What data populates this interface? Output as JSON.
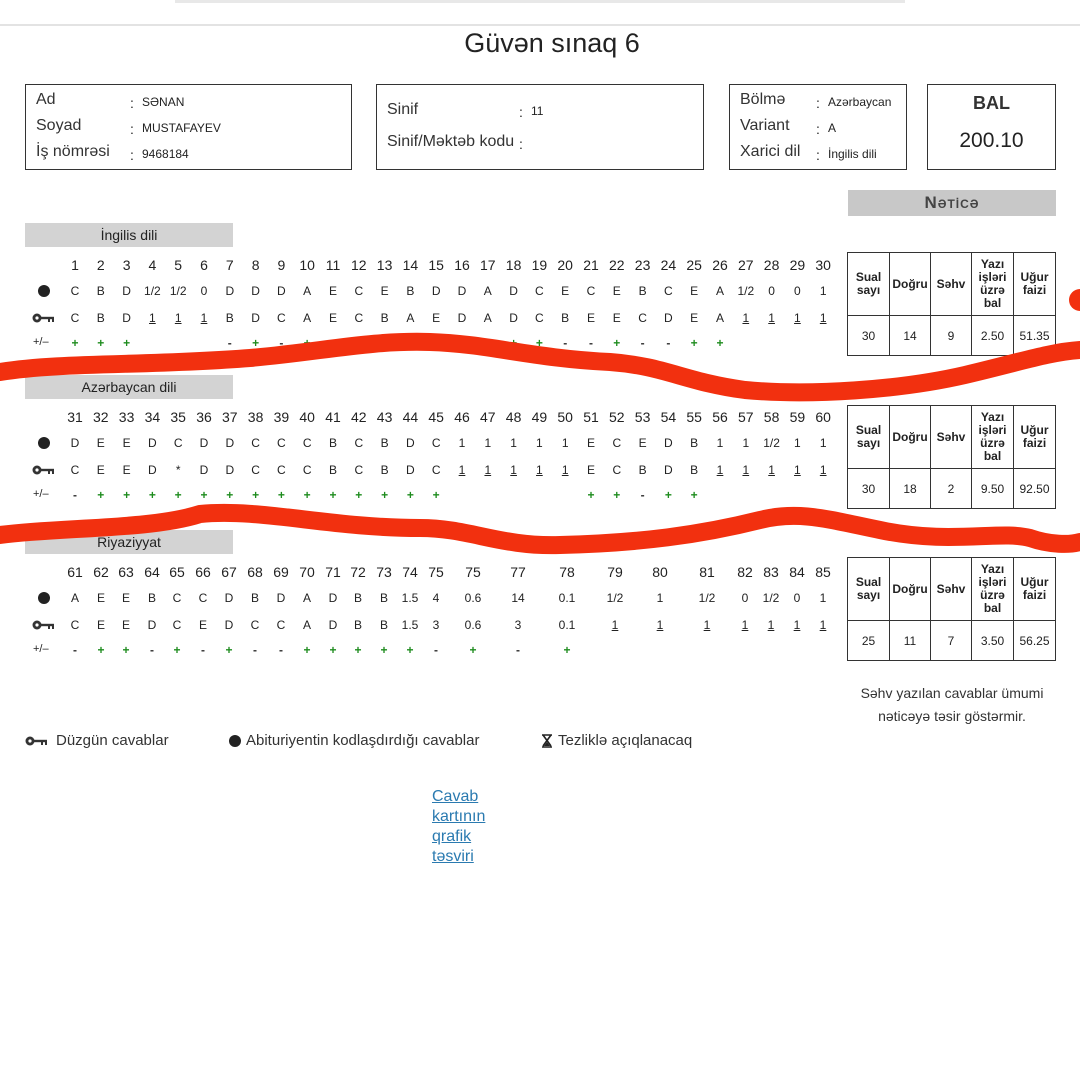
{
  "title": "Güvən sınaq 6",
  "student": [
    {
      "label": "Ad",
      "value": "SƏNAN"
    },
    {
      "label": "Soyad",
      "value": "MUSTAFAYEV"
    },
    {
      "label": "İş nömrəsi",
      "value": "9468184"
    }
  ],
  "school": [
    {
      "label": "Sinif",
      "value": "11"
    },
    {
      "label": "Sinif/Məktəb kodu",
      "value": null
    }
  ],
  "variant": [
    {
      "label": "Bölmə",
      "value": "Azərbaycan"
    },
    {
      "label": "Variant",
      "value": "A"
    },
    {
      "label": "Xarici dil",
      "value": "İngilis dili"
    }
  ],
  "score": {
    "label": "BAL",
    "value": "200.10"
  },
  "result_title": "Nəticə",
  "result_headers": [
    "Sual sayı",
    "Doğru",
    "Səhv",
    "Yazı işləri üzrə bal",
    "Uğur faizi"
  ],
  "marks_label": "+/–",
  "sections": [
    {
      "name": "İngilis dili",
      "questions": [
        "1",
        "2",
        "3",
        "4",
        "5",
        "6",
        "7",
        "8",
        "9",
        "10",
        "11",
        "12",
        "13",
        "14",
        "15",
        "16",
        "17",
        "18",
        "19",
        "20",
        "21",
        "22",
        "23",
        "24",
        "25",
        "26",
        "27",
        "28",
        "29",
        "30"
      ],
      "student": [
        "C",
        "B",
        "D",
        "1/2",
        "1/2",
        "0",
        "D",
        "D",
        "D",
        "A",
        "E",
        "C",
        "E",
        "B",
        "D",
        "D",
        "A",
        "D",
        "C",
        "E",
        "C",
        "E",
        "B",
        "C",
        "E",
        "A",
        "1/2",
        "0",
        "0",
        "1"
      ],
      "key": [
        "C",
        "B",
        "D",
        "1",
        "1",
        "1",
        "B",
        "D",
        "C",
        "A",
        "E",
        "C",
        "B",
        "A",
        "E",
        "D",
        "A",
        "D",
        "C",
        "B",
        "E",
        "E",
        "C",
        "D",
        "E",
        "A",
        "1",
        "1",
        "1",
        "1"
      ],
      "marks": [
        "+",
        "+",
        "+",
        null,
        null,
        null,
        "-",
        "+",
        "-",
        "+",
        "+",
        "+",
        "-",
        "-",
        "-",
        "+",
        "+",
        "+",
        "+",
        "-",
        "-",
        "+",
        "-",
        "-",
        "+",
        "+",
        null,
        null,
        null,
        null
      ],
      "result": [
        "30",
        "14",
        "9",
        "2.50",
        "51.35"
      ]
    },
    {
      "name": "Azərbaycan dili",
      "questions": [
        "31",
        "32",
        "33",
        "34",
        "35",
        "36",
        "37",
        "38",
        "39",
        "40",
        "41",
        "42",
        "43",
        "44",
        "45",
        "46",
        "47",
        "48",
        "49",
        "50",
        "51",
        "52",
        "53",
        "54",
        "55",
        "56",
        "57",
        "58",
        "59",
        "60"
      ],
      "student": [
        "D",
        "E",
        "E",
        "D",
        "C",
        "D",
        "D",
        "C",
        "C",
        "C",
        "B",
        "C",
        "B",
        "D",
        "C",
        "1",
        "1",
        "1",
        "1",
        "1",
        "E",
        "C",
        "E",
        "D",
        "B",
        "1",
        "1",
        "1/2",
        "1",
        "1"
      ],
      "key": [
        "C",
        "E",
        "E",
        "D",
        "*",
        "D",
        "D",
        "C",
        "C",
        "C",
        "B",
        "C",
        "B",
        "D",
        "C",
        "1",
        "1",
        "1",
        "1",
        "1",
        "E",
        "C",
        "B",
        "D",
        "B",
        "1",
        "1",
        "1",
        "1",
        "1"
      ],
      "marks": [
        "-",
        "+",
        "+",
        "+",
        "+",
        "+",
        "+",
        "+",
        "+",
        "+",
        "+",
        "+",
        "+",
        "+",
        "+",
        null,
        null,
        null,
        null,
        null,
        "+",
        "+",
        "-",
        "+",
        "+",
        null,
        null,
        null,
        null,
        null
      ],
      "result": [
        "30",
        "18",
        "2",
        "9.50",
        "92.50"
      ]
    },
    {
      "name": "Riyaziyyat",
      "questions": [
        "61",
        "62",
        "63",
        "64",
        "65",
        "66",
        "67",
        "68",
        "69",
        "70",
        "71",
        "72",
        "73",
        "74",
        "75",
        "75",
        "77",
        "78",
        "79",
        "80",
        "81",
        "82",
        "83",
        "84",
        "85"
      ],
      "student": [
        "A",
        "E",
        "E",
        "B",
        "C",
        "C",
        "D",
        "B",
        "D",
        "A",
        "D",
        "B",
        "B",
        "1.5",
        "4",
        "0.6",
        "14",
        "0.1",
        "1/2",
        "1",
        "1/2",
        "0",
        "1/2",
        "0",
        "1"
      ],
      "key": [
        "C",
        "E",
        "E",
        "D",
        "C",
        "E",
        "D",
        "C",
        "C",
        "A",
        "D",
        "B",
        "B",
        "1.5",
        "3",
        "0.6",
        "3",
        "0.1",
        "1",
        "1",
        "1",
        "1",
        "1",
        "1",
        "1"
      ],
      "marks": [
        "-",
        "+",
        "+",
        "-",
        "+",
        "-",
        "+",
        "-",
        "-",
        "+",
        "+",
        "+",
        "+",
        "+",
        "-",
        "+",
        "-",
        "+",
        null,
        null,
        null,
        null,
        null,
        null,
        null
      ],
      "result": [
        "25",
        "11",
        "7",
        "3.50",
        "56.25"
      ]
    }
  ],
  "note": "Səhv yazılan cavablar ümumi nəticəyə təsir göstərmir.",
  "legend": [
    "Düzgün cavablar",
    "Abituriyentin kodlaşdırdığı cavablar",
    "Tezliklə açıqlanacaq"
  ],
  "link": "Cavab kartının qrafik təsviri"
}
